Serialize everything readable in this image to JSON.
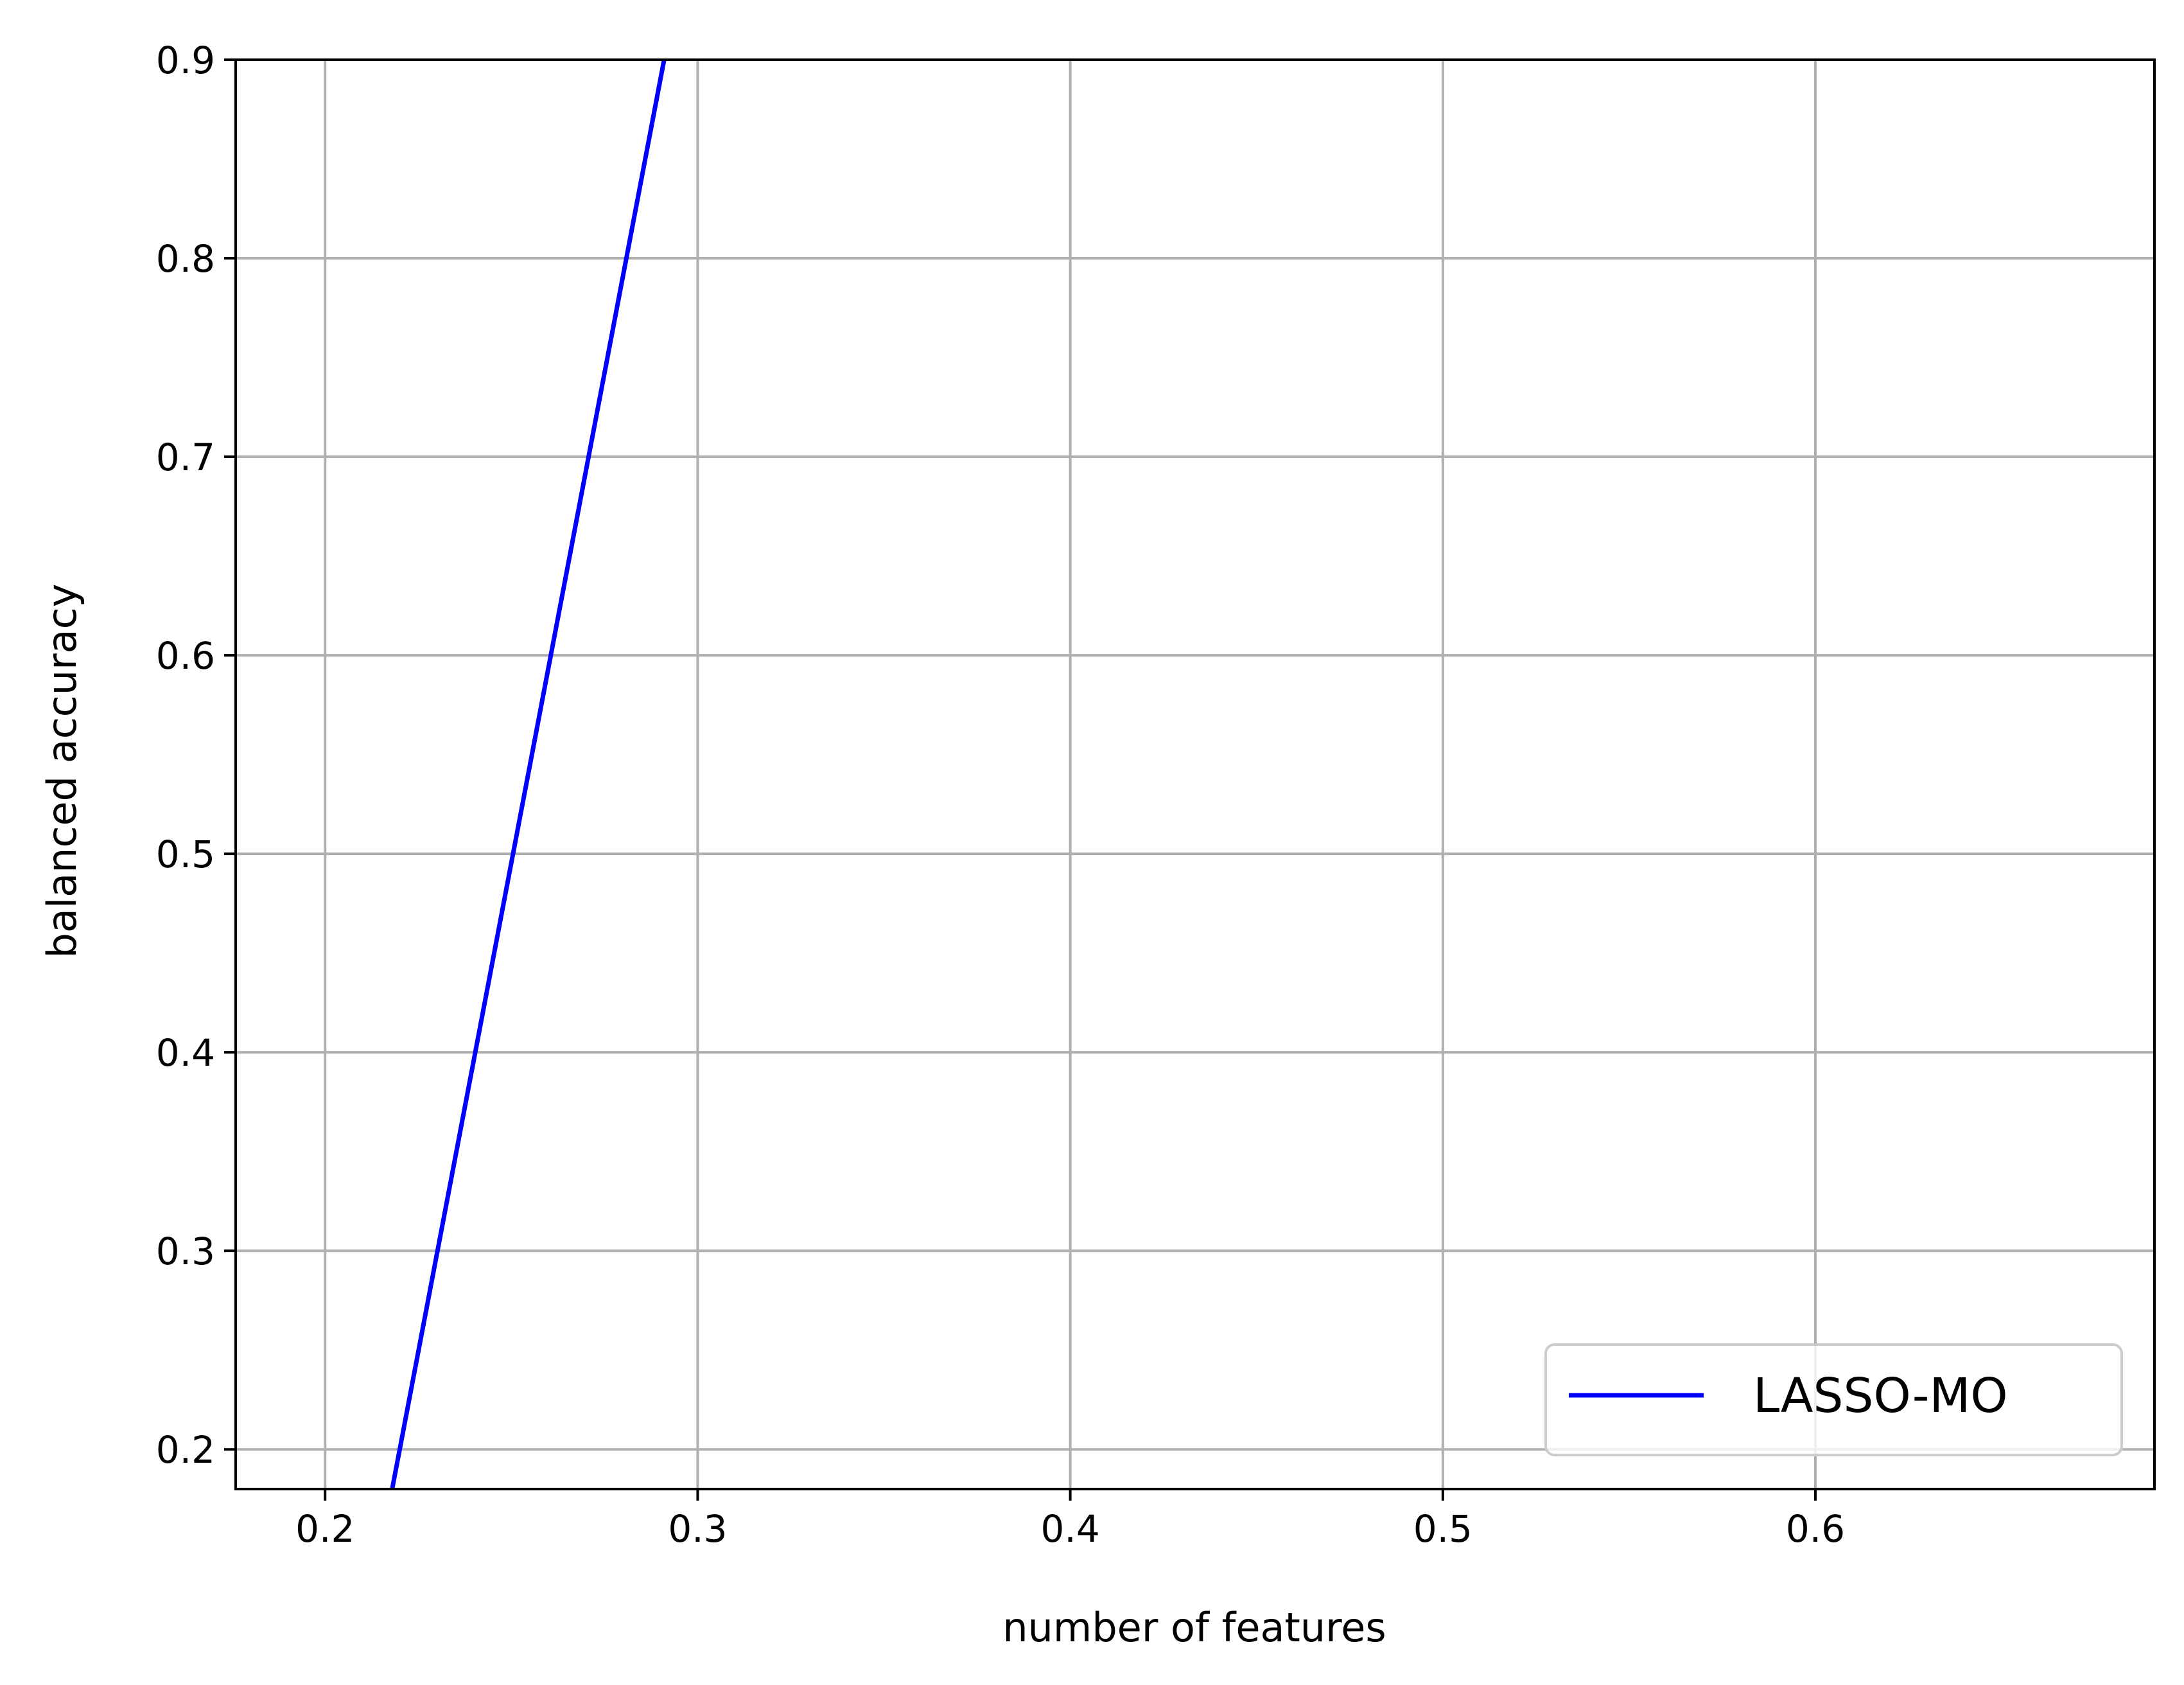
{
  "chart_data": {
    "type": "line",
    "title": "",
    "xlabel": "number of features",
    "ylabel": "balanced accuracy",
    "xlim": [
      0.176,
      0.691
    ],
    "ylim": [
      0.18,
      0.9
    ],
    "x_ticks": [
      {
        "value": 0.2,
        "label": "0.2"
      },
      {
        "value": 0.3,
        "label": "0.3"
      },
      {
        "value": 0.4,
        "label": "0.4"
      },
      {
        "value": 0.5,
        "label": "0.5"
      },
      {
        "value": 0.6,
        "label": "0.6"
      }
    ],
    "y_ticks": [
      {
        "value": 0.2,
        "label": "0.2"
      },
      {
        "value": 0.3,
        "label": "0.3"
      },
      {
        "value": 0.4,
        "label": "0.4"
      },
      {
        "value": 0.5,
        "label": "0.5"
      },
      {
        "value": 0.6,
        "label": "0.6"
      },
      {
        "value": 0.7,
        "label": "0.7"
      },
      {
        "value": 0.8,
        "label": "0.8"
      },
      {
        "value": 0.9,
        "label": "0.9"
      }
    ],
    "grid": true,
    "legend_position": "lower-right",
    "series": [
      {
        "name": "LASSO-MO",
        "color": "#0000ff",
        "x": [
          0.218,
          0.291
        ],
        "y": [
          0.18,
          0.9
        ]
      }
    ]
  }
}
